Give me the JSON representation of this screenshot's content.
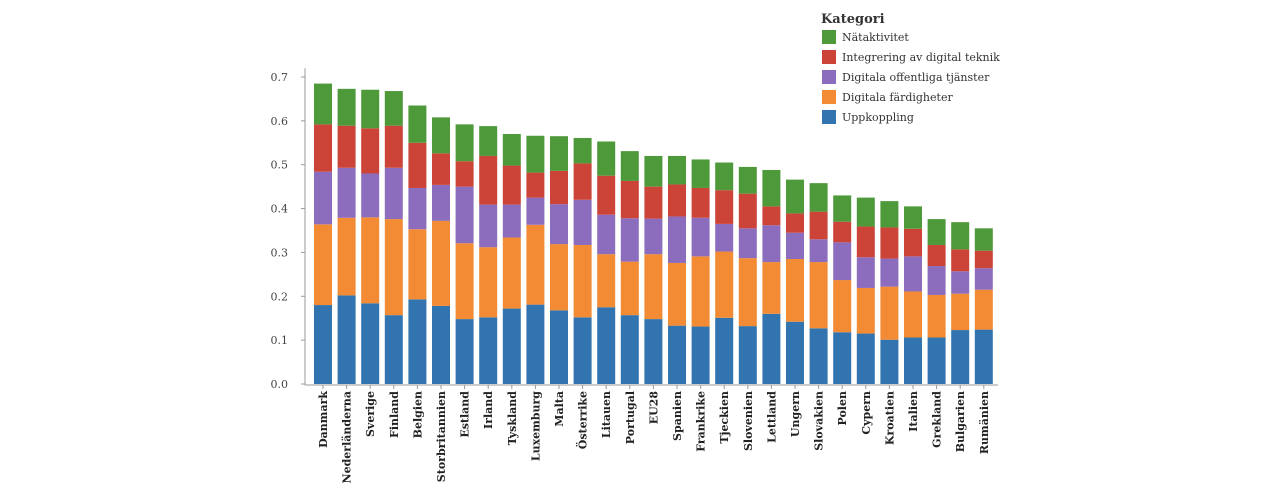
{
  "chart_data": {
    "type": "bar",
    "stacked": true,
    "title": "",
    "xlabel": "",
    "ylabel": "",
    "ylim": [
      0,
      0.72
    ],
    "yticks": [
      0.0,
      0.1,
      0.2,
      0.3,
      0.4,
      0.5,
      0.6,
      0.7
    ],
    "ytick_labels": [
      "0.0",
      "0.1",
      "0.2",
      "0.3",
      "0.4",
      "0.5",
      "0.6",
      "0.7"
    ],
    "grid": false,
    "legend": {
      "title": "Kategori",
      "placement": "top-right"
    },
    "categories": [
      "Danmark",
      "Nederländerna",
      "Sverige",
      "Finland",
      "Belgien",
      "Storbritannien",
      "Estland",
      "Irland",
      "Tyskland",
      "Luxemburg",
      "Malta",
      "Österrike",
      "Litauen",
      "Portugal",
      "EU28",
      "Spanien",
      "Frankrike",
      "Tjeckien",
      "Slovenien",
      "Lettland",
      "Ungern",
      "Slovakien",
      "Polen",
      "Cypern",
      "Kroatien",
      "Italien",
      "Grekland",
      "Bulgarien",
      "Rumänien"
    ],
    "series": [
      {
        "name": "Uppkoppling",
        "color": "#3274b0",
        "values": [
          0.18,
          0.202,
          0.184,
          0.157,
          0.193,
          0.178,
          0.148,
          0.152,
          0.172,
          0.181,
          0.168,
          0.152,
          0.175,
          0.157,
          0.148,
          0.133,
          0.131,
          0.151,
          0.132,
          0.16,
          0.142,
          0.127,
          0.118,
          0.115,
          0.101,
          0.106,
          0.106,
          0.123,
          0.124
        ]
      },
      {
        "name": "Digitala färdigheter",
        "color": "#f28b33",
        "values": [
          0.184,
          0.177,
          0.196,
          0.219,
          0.16,
          0.194,
          0.173,
          0.16,
          0.162,
          0.182,
          0.151,
          0.165,
          0.121,
          0.122,
          0.148,
          0.143,
          0.16,
          0.151,
          0.155,
          0.118,
          0.143,
          0.151,
          0.119,
          0.104,
          0.121,
          0.105,
          0.097,
          0.083,
          0.091
        ]
      },
      {
        "name": "Digitala offentliga tjänster",
        "color": "#8c6dbd",
        "values": [
          0.12,
          0.114,
          0.1,
          0.117,
          0.094,
          0.082,
          0.129,
          0.097,
          0.075,
          0.062,
          0.091,
          0.103,
          0.09,
          0.099,
          0.081,
          0.106,
          0.088,
          0.063,
          0.068,
          0.084,
          0.06,
          0.052,
          0.086,
          0.07,
          0.064,
          0.08,
          0.066,
          0.051,
          0.049
        ]
      },
      {
        "name": "Integrering av digital teknik",
        "color": "#cc4438",
        "values": [
          0.108,
          0.096,
          0.103,
          0.096,
          0.103,
          0.072,
          0.058,
          0.111,
          0.089,
          0.057,
          0.076,
          0.083,
          0.089,
          0.085,
          0.073,
          0.073,
          0.068,
          0.077,
          0.079,
          0.043,
          0.044,
          0.063,
          0.047,
          0.07,
          0.071,
          0.063,
          0.048,
          0.05,
          0.04
        ]
      },
      {
        "name": "Nätaktivitet",
        "color": "#4e9a3a",
        "values": [
          0.093,
          0.084,
          0.088,
          0.079,
          0.085,
          0.082,
          0.084,
          0.068,
          0.072,
          0.084,
          0.079,
          0.058,
          0.078,
          0.068,
          0.07,
          0.065,
          0.065,
          0.063,
          0.061,
          0.083,
          0.077,
          0.065,
          0.06,
          0.066,
          0.06,
          0.051,
          0.059,
          0.062,
          0.051
        ]
      }
    ],
    "legend_order": [
      "Nätaktivitet",
      "Integrering av digital teknik",
      "Digitala offentliga tjänster",
      "Digitala färdigheter",
      "Uppkoppling"
    ]
  }
}
